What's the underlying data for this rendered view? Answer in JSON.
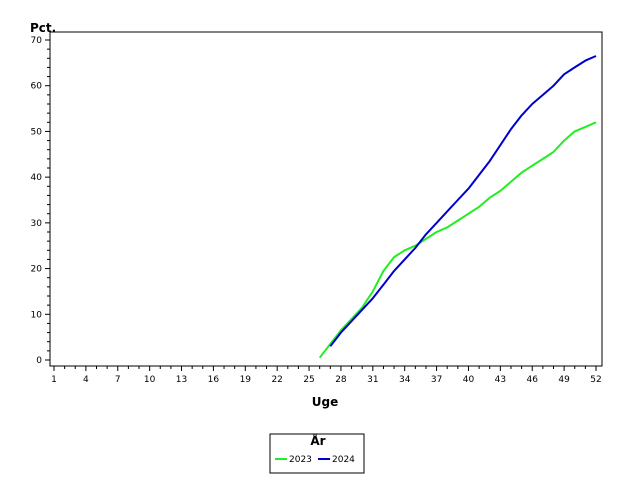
{
  "chart_data": {
    "type": "line",
    "xlabel": "Uge",
    "ylabel": "Pct.",
    "xlim": [
      1,
      52
    ],
    "ylim": [
      0,
      70
    ],
    "x_ticks": [
      1,
      4,
      7,
      10,
      13,
      16,
      19,
      22,
      25,
      28,
      31,
      34,
      37,
      40,
      43,
      46,
      49,
      52
    ],
    "y_ticks": [
      0,
      10,
      20,
      30,
      40,
      50,
      60,
      70
    ],
    "grid": false,
    "legend": {
      "title": "År",
      "position": "bottom-center",
      "entries": [
        "2023",
        "2024"
      ]
    },
    "series": [
      {
        "name": "2023",
        "color": "#22ee22",
        "x": [
          26,
          27,
          28,
          29,
          30,
          31,
          32,
          33,
          34,
          35,
          36,
          37,
          38,
          39,
          40,
          41,
          42,
          43,
          44,
          45,
          46,
          47,
          48,
          49,
          50,
          51,
          52
        ],
        "y": [
          0.5,
          3.5,
          6.5,
          9,
          11.5,
          15,
          19.5,
          22.5,
          24,
          25,
          26.5,
          28,
          29,
          30.5,
          32,
          33.5,
          35.5,
          37,
          39,
          41,
          42.5,
          44,
          45.5,
          48,
          50,
          51,
          52
        ]
      },
      {
        "name": "2024",
        "color": "#0000cc",
        "x": [
          27,
          28,
          29,
          30,
          31,
          32,
          33,
          34,
          35,
          36,
          37,
          38,
          39,
          40,
          41,
          42,
          43,
          44,
          45,
          46,
          47,
          48,
          49,
          50,
          51,
          52
        ],
        "y": [
          3,
          6,
          8.5,
          11,
          13.5,
          16.5,
          19.5,
          22,
          24.5,
          27.5,
          30,
          32.5,
          35,
          37.5,
          40.5,
          43.5,
          47,
          50.5,
          53.5,
          56,
          58,
          60,
          62.5,
          64,
          65.5,
          66.5
        ]
      }
    ]
  }
}
